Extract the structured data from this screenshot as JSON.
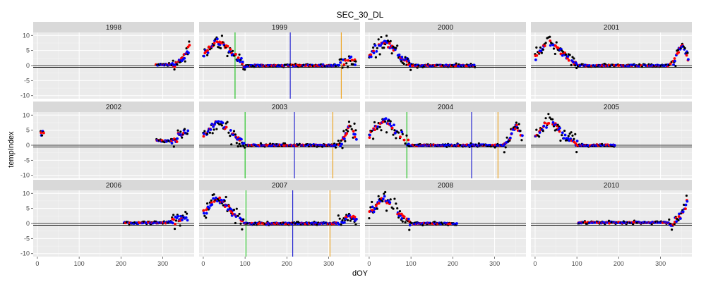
{
  "chart_data": {
    "type": "scatter",
    "title": "SEC_30_DL",
    "xlabel": "dOY",
    "ylabel": "tempIndex",
    "xlim": [
      -10,
      375
    ],
    "ylim": [
      -11,
      11
    ],
    "x_ticks": [
      0,
      100,
      200,
      300
    ],
    "y_ticks": [
      -10,
      -5,
      0,
      5,
      10
    ],
    "grid": true,
    "ref_lines_y": [
      0,
      -0.6
    ],
    "series_colors": {
      "obs": "#000000",
      "fit_red": "#ff0000",
      "fit_blue": "#0000ff"
    },
    "vline_colors": {
      "green": "#00bb00",
      "blue": "#0000cc",
      "orange": "#ee9900"
    },
    "panels": [
      {
        "name": "1998",
        "segments": [
          [
            283,
            365
          ]
        ],
        "shape": "tail_rise",
        "end_value": 7
      },
      {
        "name": "1999",
        "segments": [
          [
            0,
            365
          ]
        ],
        "shape": "spring_peak",
        "peak_value": 9.5,
        "vlines": {
          "green": 76,
          "blue": 208,
          "orange": 330
        }
      },
      {
        "name": "2000",
        "segments": [
          [
            0,
            255
          ]
        ],
        "shape": "spring_peak",
        "peak_value": 9,
        "vlines": {}
      },
      {
        "name": "2001",
        "segments": [
          [
            0,
            365
          ]
        ],
        "shape": "spring_peak",
        "peak_value": 9,
        "vlines": {}
      },
      {
        "name": "2002",
        "segments": [
          [
            8,
            15
          ],
          [
            285,
            360
          ]
        ],
        "shape": "sparse",
        "vlines": {}
      },
      {
        "name": "2003",
        "segments": [
          [
            0,
            365
          ]
        ],
        "shape": "spring_peak",
        "peak_value": 9,
        "vlines": {
          "green": 100,
          "blue": 218,
          "orange": 310
        }
      },
      {
        "name": "2004",
        "segments": [
          [
            0,
            365
          ]
        ],
        "shape": "spring_peak",
        "peak_value": 9.5,
        "vlines": {
          "green": 90,
          "blue": 245,
          "orange": 308
        }
      },
      {
        "name": "2005",
        "segments": [
          [
            0,
            190
          ]
        ],
        "shape": "spring_peak",
        "peak_value": 9,
        "vlines": {}
      },
      {
        "name": "2006",
        "segments": [
          [
            207,
            360
          ]
        ],
        "shape": "flat_tail",
        "end_value": 2,
        "vlines": {}
      },
      {
        "name": "2007",
        "segments": [
          [
            0,
            365
          ]
        ],
        "shape": "spring_peak",
        "peak_value": 9.5,
        "vlines": {
          "green": 102,
          "blue": 214,
          "orange": 303
        }
      },
      {
        "name": "2008",
        "segments": [
          [
            0,
            210
          ]
        ],
        "shape": "spring_peak",
        "peak_value": 9,
        "vlines": {}
      },
      {
        "name": "2010",
        "segments": [
          [
            103,
            365
          ]
        ],
        "shape": "tail_rise",
        "end_value": 8,
        "vlines": {}
      }
    ]
  }
}
